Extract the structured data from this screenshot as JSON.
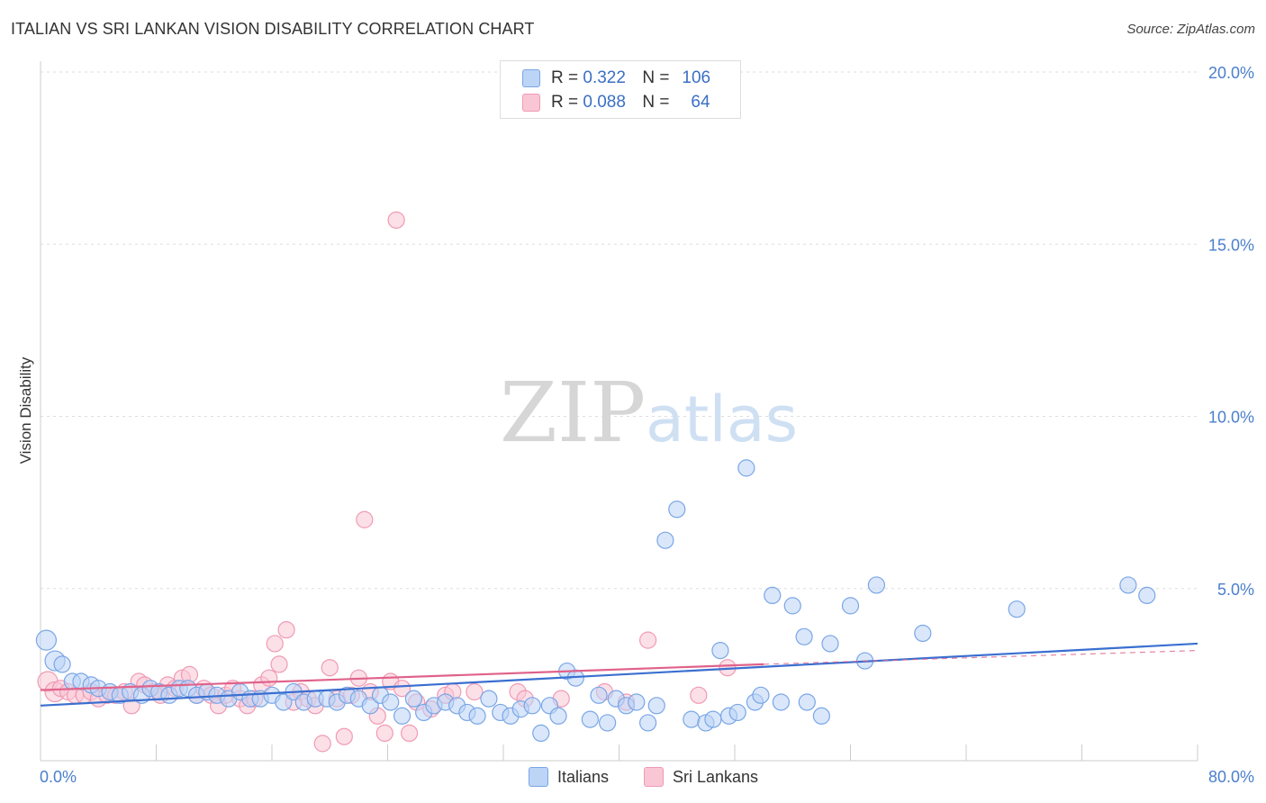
{
  "title": "ITALIAN VS SRI LANKAN VISION DISABILITY CORRELATION CHART",
  "source": "Source: ZipAtlas.com",
  "watermark": {
    "zip": "ZIP",
    "atlas": "atlas"
  },
  "legend": {
    "rows": [
      {
        "r_label": "R =",
        "r_value": "0.322",
        "n_label": "N =",
        "n_value": "106",
        "color": "#7aa6e6",
        "fill": "#bcd4f5"
      },
      {
        "r_label": "R =",
        "r_value": "0.088",
        "n_label": "N =",
        "n_value": "64",
        "color": "#f09ab4",
        "fill": "#f9c6d5"
      }
    ]
  },
  "bottom_legend": [
    {
      "label": "Italians",
      "color": "#7aa6e6",
      "fill": "#bcd4f5"
    },
    {
      "label": "Sri Lankans",
      "color": "#f09ab4",
      "fill": "#f9c6d5"
    }
  ],
  "chart_data": {
    "type": "scatter",
    "title": "ITALIAN VS SRI LANKAN VISION DISABILITY CORRELATION CHART",
    "xlabel": "",
    "ylabel": "Vision Disability",
    "xlim": [
      0,
      80
    ],
    "ylim": [
      0,
      20
    ],
    "x_tick_labels": [
      "0.0%",
      "80.0%"
    ],
    "y_tick_labels": [
      "5.0%",
      "10.0%",
      "15.0%",
      "20.0%"
    ],
    "y_ticks": [
      5,
      10,
      15,
      20
    ],
    "grid": true,
    "series": [
      {
        "name": "Italians",
        "color": "#3a6fd0",
        "marker_fill": "#bcd4f5",
        "marker_edge": "#7aa6e6",
        "trend": {
          "x0": 0,
          "y0": 1.6,
          "x1": 80,
          "y1": 3.4
        },
        "points": [
          [
            0.4,
            3.5
          ],
          [
            1.0,
            2.9
          ],
          [
            1.5,
            2.8
          ],
          [
            2.2,
            2.3
          ],
          [
            2.8,
            2.3
          ],
          [
            3.5,
            2.2
          ],
          [
            4.0,
            2.1
          ],
          [
            4.8,
            2.0
          ],
          [
            5.5,
            1.9
          ],
          [
            6.2,
            2.0
          ],
          [
            7.0,
            1.9
          ],
          [
            7.6,
            2.1
          ],
          [
            8.2,
            2.0
          ],
          [
            8.9,
            1.9
          ],
          [
            9.6,
            2.1
          ],
          [
            10.2,
            2.1
          ],
          [
            10.8,
            1.9
          ],
          [
            11.5,
            2.0
          ],
          [
            12.2,
            1.9
          ],
          [
            13.0,
            1.8
          ],
          [
            13.8,
            2.0
          ],
          [
            14.5,
            1.8
          ],
          [
            15.2,
            1.8
          ],
          [
            16.0,
            1.9
          ],
          [
            16.8,
            1.7
          ],
          [
            17.5,
            2.0
          ],
          [
            18.2,
            1.7
          ],
          [
            19.0,
            1.8
          ],
          [
            19.8,
            1.8
          ],
          [
            20.5,
            1.7
          ],
          [
            21.2,
            1.9
          ],
          [
            22.0,
            1.8
          ],
          [
            22.8,
            1.6
          ],
          [
            23.5,
            1.9
          ],
          [
            24.2,
            1.7
          ],
          [
            25.0,
            1.3
          ],
          [
            25.8,
            1.8
          ],
          [
            26.5,
            1.4
          ],
          [
            27.2,
            1.6
          ],
          [
            28.0,
            1.7
          ],
          [
            28.8,
            1.6
          ],
          [
            29.5,
            1.4
          ],
          [
            30.2,
            1.3
          ],
          [
            31.0,
            1.8
          ],
          [
            31.8,
            1.4
          ],
          [
            32.5,
            1.3
          ],
          [
            33.2,
            1.5
          ],
          [
            34.0,
            1.6
          ],
          [
            34.6,
            0.8
          ],
          [
            35.2,
            1.6
          ],
          [
            35.8,
            1.3
          ],
          [
            36.4,
            2.6
          ],
          [
            37.0,
            2.4
          ],
          [
            38.0,
            1.2
          ],
          [
            38.6,
            1.9
          ],
          [
            39.2,
            1.1
          ],
          [
            39.8,
            1.8
          ],
          [
            40.5,
            1.6
          ],
          [
            41.2,
            1.7
          ],
          [
            42.0,
            1.1
          ],
          [
            42.6,
            1.6
          ],
          [
            43.2,
            6.4
          ],
          [
            44.0,
            7.3
          ],
          [
            45.0,
            1.2
          ],
          [
            46.0,
            1.1
          ],
          [
            46.5,
            1.2
          ],
          [
            47.0,
            3.2
          ],
          [
            47.6,
            1.3
          ],
          [
            48.2,
            1.4
          ],
          [
            48.8,
            8.5
          ],
          [
            49.4,
            1.7
          ],
          [
            49.8,
            1.9
          ],
          [
            50.6,
            4.8
          ],
          [
            51.2,
            1.7
          ],
          [
            52.0,
            4.5
          ],
          [
            52.8,
            3.6
          ],
          [
            53.0,
            1.7
          ],
          [
            54.0,
            1.3
          ],
          [
            54.6,
            3.4
          ],
          [
            56.0,
            4.5
          ],
          [
            57.0,
            2.9
          ],
          [
            57.8,
            5.1
          ],
          [
            61.0,
            3.7
          ],
          [
            67.5,
            4.4
          ],
          [
            75.2,
            5.1
          ],
          [
            76.5,
            4.8
          ]
        ]
      },
      {
        "name": "Sri Lankans",
        "color": "#e0628a",
        "marker_fill": "#f9c6d5",
        "marker_edge": "#f09ab4",
        "trend": {
          "x0": 0,
          "y0": 2.05,
          "x1": 50,
          "y1": 2.8,
          "dash_to_x": 80,
          "dash_to_y": 3.2
        },
        "points": [
          [
            0.5,
            2.3
          ],
          [
            1.0,
            2.0
          ],
          [
            1.4,
            2.1
          ],
          [
            1.9,
            2.0
          ],
          [
            2.4,
            1.9
          ],
          [
            3.0,
            1.9
          ],
          [
            3.5,
            2.0
          ],
          [
            4.0,
            1.8
          ],
          [
            4.6,
            1.9
          ],
          [
            5.2,
            1.9
          ],
          [
            5.8,
            2.0
          ],
          [
            6.3,
            1.6
          ],
          [
            6.8,
            2.3
          ],
          [
            7.2,
            2.2
          ],
          [
            7.8,
            2.0
          ],
          [
            8.3,
            1.9
          ],
          [
            8.8,
            2.2
          ],
          [
            9.3,
            2.1
          ],
          [
            9.8,
            2.4
          ],
          [
            10.3,
            2.5
          ],
          [
            10.8,
            1.9
          ],
          [
            11.3,
            2.1
          ],
          [
            11.8,
            1.9
          ],
          [
            12.3,
            1.6
          ],
          [
            12.8,
            1.9
          ],
          [
            13.3,
            2.1
          ],
          [
            13.8,
            1.8
          ],
          [
            14.3,
            1.6
          ],
          [
            14.8,
            1.8
          ],
          [
            15.3,
            2.2
          ],
          [
            15.8,
            2.4
          ],
          [
            16.2,
            3.4
          ],
          [
            16.5,
            2.8
          ],
          [
            17.0,
            3.8
          ],
          [
            17.5,
            1.7
          ],
          [
            18.0,
            2.0
          ],
          [
            18.5,
            1.8
          ],
          [
            19.0,
            1.6
          ],
          [
            19.5,
            0.5
          ],
          [
            20.0,
            2.7
          ],
          [
            20.5,
            1.8
          ],
          [
            21.0,
            0.7
          ],
          [
            21.5,
            1.9
          ],
          [
            22.0,
            2.4
          ],
          [
            22.4,
            7.0
          ],
          [
            22.8,
            2.0
          ],
          [
            23.3,
            1.3
          ],
          [
            23.8,
            0.8
          ],
          [
            24.2,
            2.3
          ],
          [
            24.6,
            15.7
          ],
          [
            25.0,
            2.1
          ],
          [
            25.5,
            0.8
          ],
          [
            26.0,
            1.7
          ],
          [
            27.0,
            1.5
          ],
          [
            28.0,
            1.9
          ],
          [
            28.5,
            2.0
          ],
          [
            30.0,
            2.0
          ],
          [
            33.0,
            2.0
          ],
          [
            33.5,
            1.8
          ],
          [
            36.0,
            1.8
          ],
          [
            39.0,
            2.0
          ],
          [
            40.5,
            1.7
          ],
          [
            42.0,
            3.5
          ],
          [
            45.5,
            1.9
          ],
          [
            47.5,
            2.7
          ]
        ]
      }
    ]
  }
}
